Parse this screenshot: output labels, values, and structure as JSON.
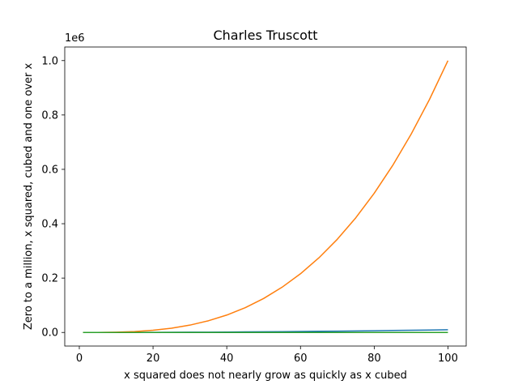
{
  "chart_data": {
    "type": "line",
    "title": "Charles Truscott",
    "xlabel": "x squared does not nearly grow as quickly as x cubed",
    "ylabel": "Zero to a million, x squared, cubed and one over x",
    "y_offset_label": "1e6",
    "xlim": [
      -3.95,
      104.95
    ],
    "ylim": [
      -50000,
      1050000
    ],
    "x_ticks": [
      0,
      20,
      40,
      60,
      80,
      100
    ],
    "x_tick_labels": [
      "0",
      "20",
      "40",
      "60",
      "80",
      "100"
    ],
    "y_ticks": [
      0,
      200000,
      400000,
      600000,
      800000,
      1000000
    ],
    "y_tick_labels": [
      "0.0",
      "0.2",
      "0.4",
      "0.6",
      "0.8",
      "1.0"
    ],
    "grid": false,
    "legend": "none",
    "x": [
      1,
      5,
      10,
      15,
      20,
      25,
      30,
      35,
      40,
      45,
      50,
      55,
      60,
      65,
      70,
      75,
      80,
      85,
      90,
      95,
      100
    ],
    "series": [
      {
        "color": "#1f77b4",
        "values": [
          1,
          25,
          100,
          225,
          400,
          625,
          900,
          1225,
          1600,
          2025,
          2500,
          3025,
          3600,
          4225,
          4900,
          5625,
          6400,
          7225,
          8100,
          9025,
          10000
        ]
      },
      {
        "color": "#ff7f0e",
        "values": [
          1,
          125,
          1000,
          3375,
          8000,
          15625,
          27000,
          42875,
          64000,
          91125,
          125000,
          166375,
          216000,
          274625,
          343000,
          421875,
          512000,
          614125,
          729000,
          857375,
          1000000
        ]
      },
      {
        "color": "#2ca02c",
        "values": [
          1,
          1.2,
          1.4,
          1.6,
          1.8,
          2.0,
          2.2,
          2.4,
          2.6,
          2.8,
          3.0,
          3.2,
          3.4,
          3.6,
          3.8,
          4.0,
          4.2,
          4.4,
          4.6,
          4.8,
          5.0
        ]
      }
    ]
  }
}
